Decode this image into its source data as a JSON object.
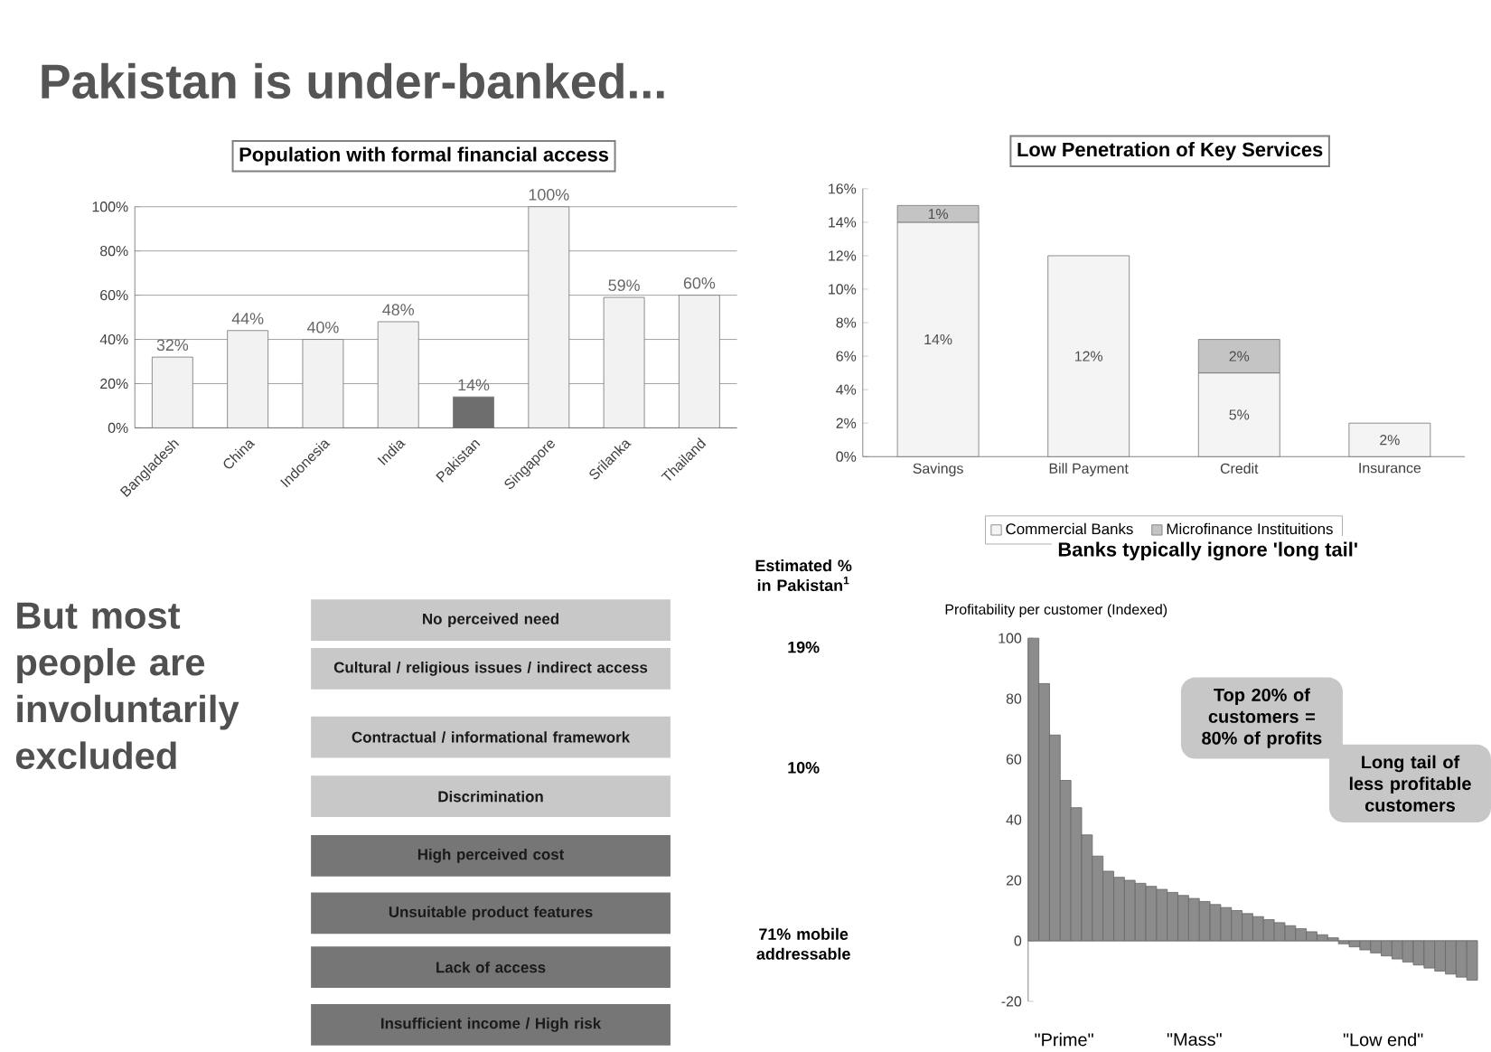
{
  "chart_data": [
    {
      "type": "other",
      "title": "Pakistan is under-banked..."
    },
    {
      "type": "bar",
      "title": "Population with formal financial access",
      "categories": [
        "Bangladesh",
        "China",
        "Indonesia",
        "India",
        "Pakistan",
        "Singapore",
        "Srilanka",
        "Thailand"
      ],
      "values": [
        32,
        44,
        40,
        48,
        14,
        100,
        59,
        60
      ],
      "colors": [
        "#f2f2f2",
        "#f2f2f2",
        "#f2f2f2",
        "#f2f2f2",
        "#6e6e6e",
        "#f2f2f2",
        "#f2f2f2",
        "#f2f2f2"
      ],
      "value_labels": [
        "32%",
        "44%",
        "40%",
        "48%",
        "14%",
        "100%",
        "59%",
        "60%"
      ],
      "ylim": [
        0,
        100
      ],
      "yticks": [
        {
          "value": 0,
          "label": "0%"
        },
        {
          "value": 20,
          "label": "20%"
        },
        {
          "value": 40,
          "label": "40%"
        },
        {
          "value": 60,
          "label": "60%"
        },
        {
          "value": 80,
          "label": "80%"
        },
        {
          "value": 100,
          "label": "100%"
        }
      ],
      "grid": "y"
    },
    {
      "type": "bar",
      "title": "Low Penetration of Key Services",
      "categories": [
        "Savings",
        "Bill Payment",
        "Credit",
        "Insurance"
      ],
      "stacked": true,
      "legend": "bottom",
      "series": [
        {
          "name": "Commercial Banks",
          "color": "#f4f4f4",
          "values": [
            14,
            12,
            5,
            2
          ],
          "value_labels": [
            "14%",
            "12%",
            "5%",
            "2%"
          ]
        },
        {
          "name": "Microfinance Instituitions",
          "color": "#c4c4c4",
          "values": [
            1,
            null,
            2,
            null
          ],
          "value_labels": [
            "1%",
            null,
            "2%",
            null
          ]
        }
      ],
      "ylim": [
        0,
        16
      ],
      "yticks": [
        {
          "value": 0,
          "label": "0%"
        },
        {
          "value": 2,
          "label": "2%"
        },
        {
          "value": 4,
          "label": "4%"
        },
        {
          "value": 6,
          "label": "6%"
        },
        {
          "value": 8,
          "label": "8%"
        },
        {
          "value": 10,
          "label": "10%"
        },
        {
          "value": 12,
          "label": "12%"
        },
        {
          "value": 14,
          "label": "14%"
        },
        {
          "value": 16,
          "label": "16%"
        }
      ]
    },
    {
      "type": "other",
      "categories": [
        "No perceived need",
        "Cultural / religious issues / indirect access",
        "Contractual / informational framework",
        "Discrimination",
        "High perceived cost",
        "Unsuitable product features",
        "Lack of access",
        "Insufficient income / High risk"
      ],
      "colors": [
        "#c8c8c8",
        "#c8c8c8",
        "#c8c8c8",
        "#c8c8c8",
        "#767676",
        "#767676",
        "#767676",
        "#767676"
      ],
      "annotations": [
        "But most people are involuntarily excluded",
        "Estimated % in Pakistan$^{1}$",
        "19%",
        "10%",
        "71% mobile addressable"
      ]
    },
    {
      "type": "bar",
      "title": "Banks typically ignore 'long tail'",
      "ylabel": "Profitability per customer (Indexed)",
      "color": "#8c8c8c",
      "categories": [
        null,
        null,
        null,
        null,
        null,
        null,
        null,
        null,
        null,
        null,
        null,
        null,
        null,
        null,
        null,
        null,
        null,
        null,
        null,
        null,
        null,
        null,
        null,
        null,
        null,
        null,
        null,
        null,
        null,
        null,
        null,
        null,
        null,
        null,
        null,
        null,
        null,
        null,
        null,
        null,
        null,
        null
      ],
      "values": [
        100,
        85,
        68,
        53,
        44,
        35,
        28,
        23,
        21,
        20,
        19,
        18,
        17,
        16,
        15,
        14,
        13,
        12,
        11,
        10,
        9,
        8,
        7,
        6,
        5,
        4,
        3,
        2,
        1,
        -1,
        -2,
        -3,
        -4,
        -5,
        -6,
        -7,
        -8,
        -9,
        -10,
        -11,
        -12,
        -13
      ],
      "ylim": [
        -20,
        100
      ],
      "yticks": [
        -20,
        0,
        20,
        40,
        60,
        80,
        100
      ],
      "annotations": [
        "Top 20% of customers = 80% of profits",
        "Long tail of less profitable customers",
        "\"Prime\"",
        "\"Mass\"",
        "\"Low end\""
      ]
    }
  ]
}
